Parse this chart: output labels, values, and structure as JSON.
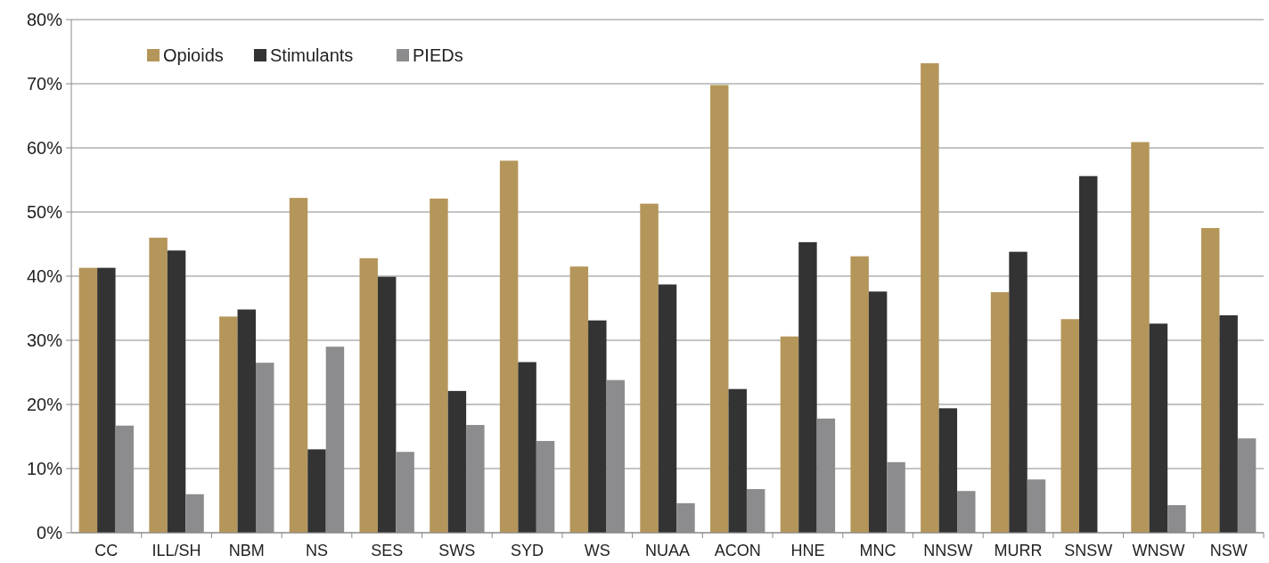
{
  "chart_data": {
    "type": "bar",
    "categories": [
      "CC",
      "ILL/SH",
      "NBM",
      "NS",
      "SES",
      "SWS",
      "SYD",
      "WS",
      "NUAA",
      "ACON",
      "HNE",
      "MNC",
      "NNSW",
      "MURR",
      "SNSW",
      "WNSW",
      "NSW"
    ],
    "series": [
      {
        "name": "Opioids",
        "color": "#b5965a",
        "values": [
          41.3,
          46.0,
          33.7,
          52.2,
          42.8,
          52.1,
          58.0,
          41.5,
          51.3,
          69.8,
          30.6,
          43.1,
          73.2,
          37.5,
          33.3,
          60.9,
          47.5
        ]
      },
      {
        "name": "Stimulants",
        "color": "#333333",
        "values": [
          41.3,
          44.0,
          34.8,
          13.0,
          39.9,
          22.1,
          26.6,
          33.1,
          38.7,
          22.4,
          45.3,
          37.6,
          19.4,
          43.8,
          55.6,
          32.6,
          33.9
        ]
      },
      {
        "name": "PIEDs",
        "color": "#8c8c8e",
        "values": [
          16.7,
          6.0,
          26.5,
          29.0,
          12.6,
          16.8,
          14.3,
          23.8,
          4.6,
          6.8,
          17.8,
          11.0,
          6.5,
          8.3,
          0,
          4.3,
          14.7
        ]
      }
    ],
    "ylim": [
      0,
      80
    ],
    "yticks": [
      {
        "value": 0,
        "label": "0%"
      },
      {
        "value": 10,
        "label": "10%"
      },
      {
        "value": 20,
        "label": "20%"
      },
      {
        "value": 30,
        "label": "30%"
      },
      {
        "value": 40,
        "label": "40%"
      },
      {
        "value": 50,
        "label": "50%"
      },
      {
        "value": 60,
        "label": "60%"
      },
      {
        "value": 70,
        "label": "70%"
      },
      {
        "value": 80,
        "label": "80%"
      }
    ],
    "grid": "y",
    "legend": "top left"
  }
}
